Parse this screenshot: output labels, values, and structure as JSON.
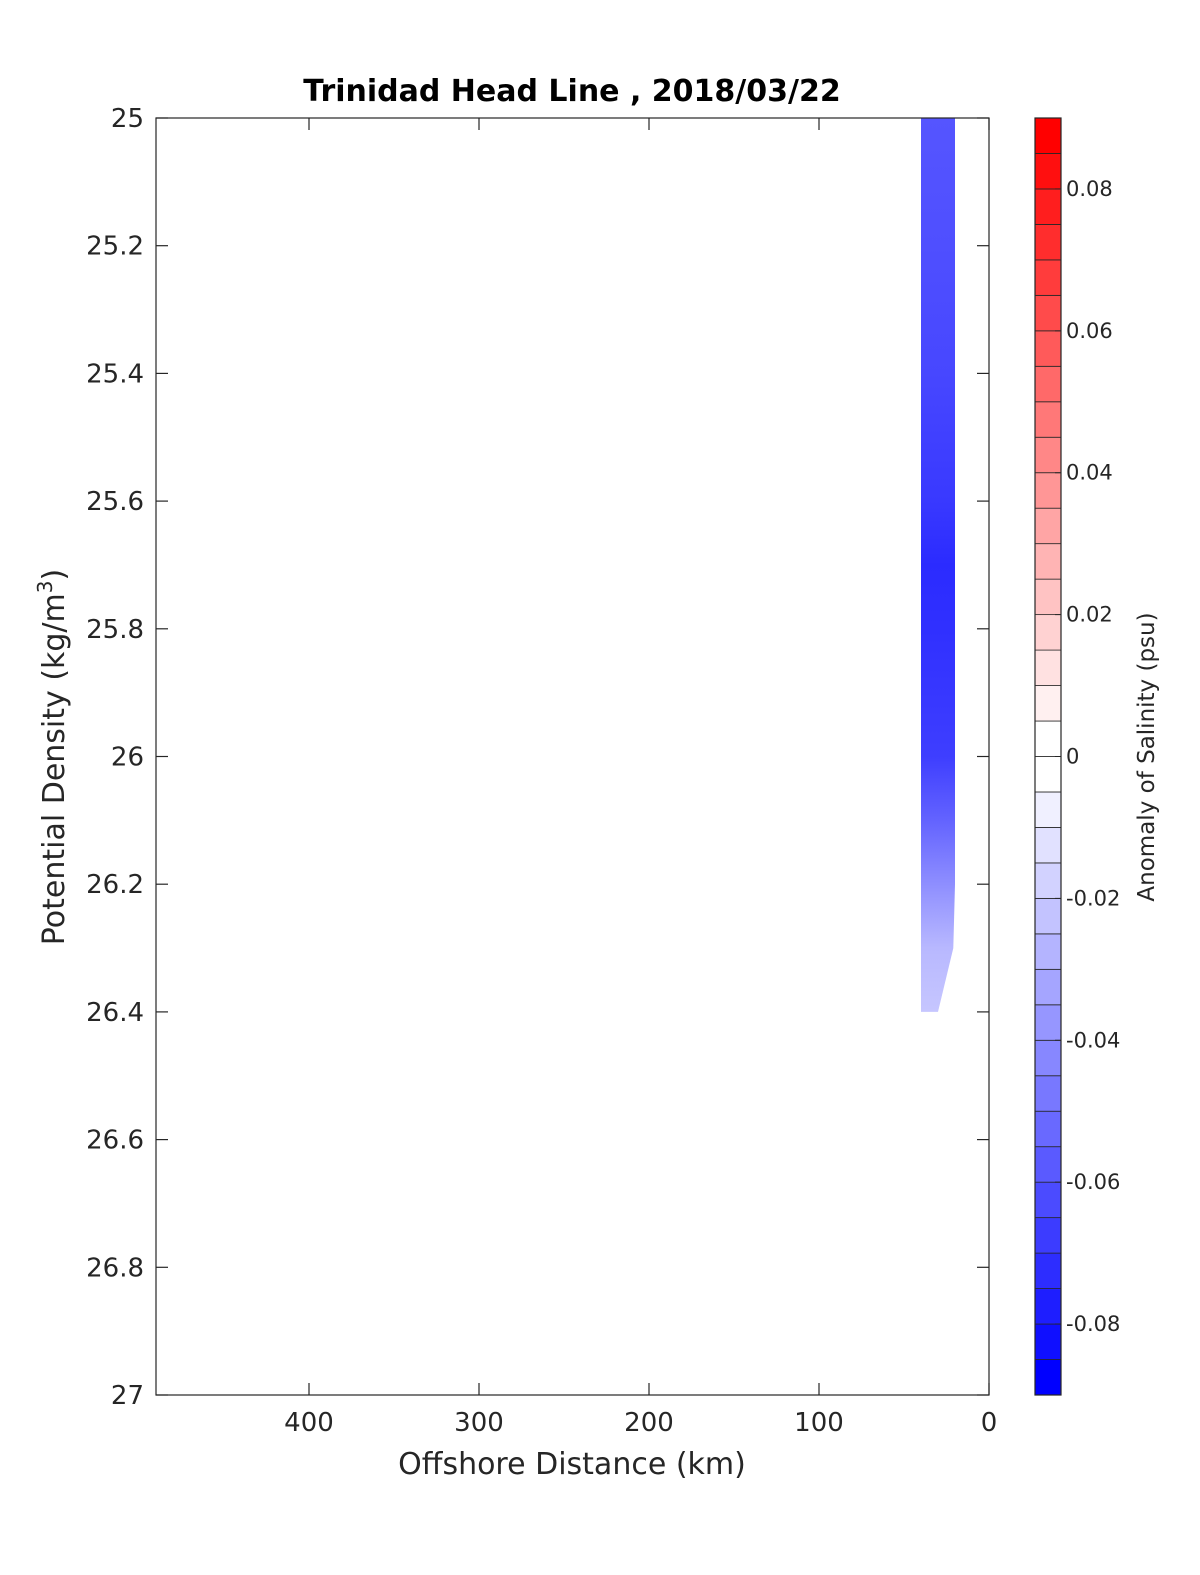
{
  "chart_data": {
    "type": "heatmap",
    "title": "Trinidad Head Line , 2018/03/22",
    "xlabel": "Offshore Distance (km)",
    "ylabel_main": "Potential Density (kg/m",
    "ylabel_sup": "3",
    "ylabel_close": ")",
    "xlim": [
      490,
      0
    ],
    "x_reversed": true,
    "ylim": [
      25,
      27
    ],
    "y_reversed": true,
    "xticks": [
      400,
      300,
      200,
      100,
      0
    ],
    "xtick_labels": [
      "400",
      "300",
      "200",
      "100",
      "0"
    ],
    "yticks": [
      25,
      25.2,
      25.4,
      25.6,
      25.8,
      26,
      26.2,
      26.4,
      26.6,
      26.8,
      27
    ],
    "ytick_labels": [
      "25",
      "25.2",
      "25.4",
      "25.6",
      "25.8",
      "26",
      "26.2",
      "26.4",
      "26.6",
      "26.8",
      "27"
    ],
    "grid": false,
    "colorbar": {
      "label": "Anomaly of Salinity (psu)",
      "range": [
        -0.09,
        0.09
      ],
      "levels": 36,
      "low_color": "#0000ff",
      "mid_color": "#ffffff",
      "high_color": "#ff0000",
      "ticks": [
        0.08,
        0.06,
        0.04,
        0.02,
        0,
        -0.02,
        -0.04,
        -0.06,
        -0.08
      ],
      "tick_labels": [
        "0.08",
        "0.06",
        "0.04",
        "0.02",
        "0",
        "-0.02",
        "-0.04",
        "-0.06",
        "-0.08"
      ]
    },
    "contour_region": {
      "description_values": "Negative salinity anomaly band near the coast",
      "x_range": [
        40,
        20
      ],
      "y_range": [
        25,
        26.4
      ],
      "profile": [
        {
          "density": 25.0,
          "x_left": 40,
          "x_right": 20,
          "anomaly": -0.06
        },
        {
          "density": 25.2,
          "x_left": 40,
          "x_right": 20,
          "anomaly": -0.062
        },
        {
          "density": 25.4,
          "x_left": 40,
          "x_right": 20,
          "anomaly": -0.065
        },
        {
          "density": 25.6,
          "x_left": 40,
          "x_right": 20,
          "anomaly": -0.07
        },
        {
          "density": 25.7,
          "x_left": 40,
          "x_right": 20,
          "anomaly": -0.075
        },
        {
          "density": 25.8,
          "x_left": 40,
          "x_right": 20,
          "anomaly": -0.073
        },
        {
          "density": 26.0,
          "x_left": 40,
          "x_right": 20,
          "anomaly": -0.068
        },
        {
          "density": 26.1,
          "x_left": 40,
          "x_right": 20,
          "anomaly": -0.055
        },
        {
          "density": 26.2,
          "x_left": 40,
          "x_right": 20,
          "anomaly": -0.04
        },
        {
          "density": 26.3,
          "x_left": 40,
          "x_right": 21,
          "anomaly": -0.025
        },
        {
          "density": 26.4,
          "x_left": 40,
          "x_right": 30,
          "anomaly": -0.02
        }
      ]
    }
  }
}
